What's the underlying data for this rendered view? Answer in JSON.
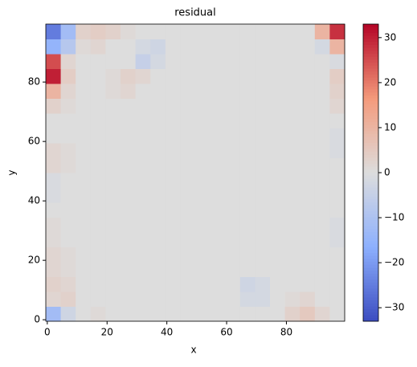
{
  "chart_data": {
    "type": "heatmap",
    "title": "residual",
    "x_label": "x",
    "y_label": "y",
    "colormap": "coolwarm",
    "xlim": [
      -0.5,
      99.5
    ],
    "ylim": [
      -0.5,
      99.5
    ],
    "xticks": [
      0,
      20,
      40,
      60,
      80
    ],
    "yticks": [
      0,
      20,
      40,
      60,
      80
    ],
    "clim": [
      -33,
      33
    ],
    "cticks": [
      {
        "value": -30,
        "label": "−30"
      },
      {
        "value": -20,
        "label": "−20"
      },
      {
        "value": -10,
        "label": "−10"
      },
      0,
      10,
      20,
      30
    ],
    "z": [
      [
        -12,
        -3,
        0,
        1,
        0,
        0,
        0,
        0,
        0,
        0,
        0,
        0,
        0,
        0,
        0,
        0,
        3,
        5,
        2,
        0
      ],
      [
        2,
        3,
        0,
        0,
        0,
        0,
        0,
        0,
        0,
        0,
        0,
        0,
        0,
        -2,
        -2,
        0,
        1,
        2,
        0,
        0
      ],
      [
        3,
        2,
        0,
        0,
        0,
        0,
        0,
        0,
        0,
        0,
        0,
        0,
        0,
        -3,
        -2,
        0,
        0,
        0,
        0,
        0
      ],
      [
        2,
        1,
        0,
        0,
        0,
        0,
        0,
        0,
        0,
        0,
        0,
        0,
        0,
        0,
        0,
        0,
        0,
        0,
        0,
        0
      ],
      [
        2,
        1,
        0,
        0,
        0,
        0,
        0,
        0,
        0,
        0,
        0,
        0,
        0,
        0,
        0,
        0,
        0,
        0,
        0,
        0
      ],
      [
        1,
        0,
        0,
        0,
        0,
        0,
        0,
        0,
        0,
        0,
        0,
        0,
        0,
        0,
        0,
        0,
        0,
        0,
        0,
        -1
      ],
      [
        1,
        0,
        0,
        0,
        0,
        0,
        0,
        0,
        0,
        0,
        0,
        0,
        0,
        0,
        0,
        0,
        0,
        0,
        0,
        -1
      ],
      [
        0,
        0,
        0,
        0,
        0,
        0,
        0,
        0,
        0,
        0,
        0,
        0,
        0,
        0,
        0,
        0,
        0,
        0,
        0,
        0
      ],
      [
        -1,
        0,
        0,
        0,
        0,
        0,
        0,
        0,
        0,
        0,
        0,
        0,
        0,
        0,
        0,
        0,
        0,
        0,
        0,
        0
      ],
      [
        -1,
        0,
        0,
        0,
        0,
        0,
        0,
        0,
        0,
        0,
        0,
        0,
        0,
        0,
        0,
        0,
        0,
        0,
        0,
        0
      ],
      [
        2,
        1,
        0,
        0,
        0,
        0,
        0,
        0,
        0,
        0,
        0,
        0,
        0,
        0,
        0,
        0,
        0,
        0,
        0,
        0
      ],
      [
        2,
        1,
        0,
        0,
        0,
        0,
        0,
        0,
        0,
        0,
        0,
        0,
        0,
        0,
        0,
        0,
        0,
        0,
        0,
        -1
      ],
      [
        0,
        0,
        0,
        0,
        0,
        0,
        0,
        0,
        0,
        0,
        0,
        0,
        0,
        0,
        0,
        0,
        0,
        0,
        0,
        -1
      ],
      [
        0,
        0,
        0,
        0,
        0,
        0,
        0,
        0,
        0,
        0,
        0,
        0,
        0,
        0,
        0,
        0,
        0,
        0,
        0,
        0
      ],
      [
        3,
        1,
        0,
        0,
        0,
        0,
        0,
        0,
        0,
        0,
        0,
        0,
        0,
        0,
        0,
        0,
        0,
        0,
        0,
        2
      ],
      [
        10,
        2,
        0,
        0,
        1,
        2,
        0,
        0,
        0,
        0,
        0,
        0,
        0,
        0,
        0,
        0,
        0,
        0,
        0,
        3
      ],
      [
        30,
        4,
        0,
        0,
        1,
        3,
        2,
        0,
        0,
        0,
        0,
        0,
        0,
        0,
        0,
        0,
        0,
        0,
        0,
        4
      ],
      [
        25,
        2,
        0,
        0,
        0,
        0,
        -5,
        -2,
        0,
        0,
        0,
        0,
        0,
        0,
        0,
        0,
        0,
        0,
        0,
        -1
      ],
      [
        -15,
        -8,
        1,
        2,
        0,
        0,
        -2,
        -3,
        0,
        0,
        0,
        0,
        0,
        0,
        0,
        0,
        0,
        0,
        -2,
        10
      ],
      [
        -25,
        -12,
        3,
        4,
        3,
        1,
        0,
        0,
        0,
        0,
        0,
        0,
        0,
        0,
        0,
        0,
        0,
        0,
        10,
        28
      ]
    ]
  }
}
